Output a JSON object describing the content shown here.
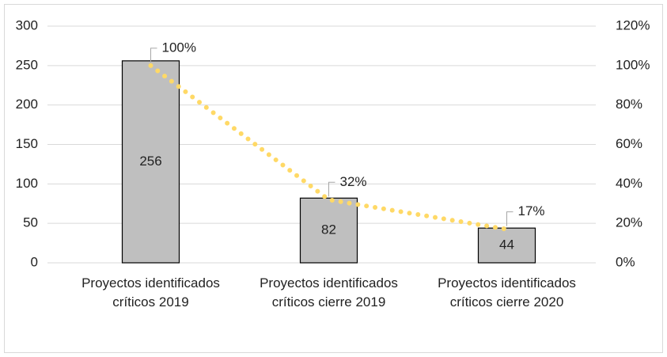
{
  "chart_data": {
    "type": "bar",
    "categories": [
      "Proyectos identificados críticos 2019",
      "Proyectos identificados críticos cierre 2019",
      "Proyectos identificados críticos cierre 2020"
    ],
    "series": [
      {
        "type": "bar",
        "color": "#bfbfbf",
        "values": [
          256,
          82,
          44
        ]
      },
      {
        "type": "line",
        "axis": "y2",
        "color": "#ffd966",
        "values": [
          100,
          32,
          17
        ],
        "value_labels": [
          "100%",
          "32%",
          "17%"
        ]
      }
    ],
    "ylim": [
      0,
      300
    ],
    "yticks": [
      0,
      50,
      100,
      150,
      200,
      250,
      300
    ],
    "y2lim": [
      0,
      120
    ],
    "y2ticks": [
      {
        "value": 0,
        "label": "0%"
      },
      {
        "value": 20,
        "label": "20%"
      },
      {
        "value": 40,
        "label": "40%"
      },
      {
        "value": 60,
        "label": "60%"
      },
      {
        "value": 80,
        "label": "80%"
      },
      {
        "value": 100,
        "label": "100%"
      },
      {
        "value": 120,
        "label": "120%"
      }
    ],
    "grid": true
  }
}
